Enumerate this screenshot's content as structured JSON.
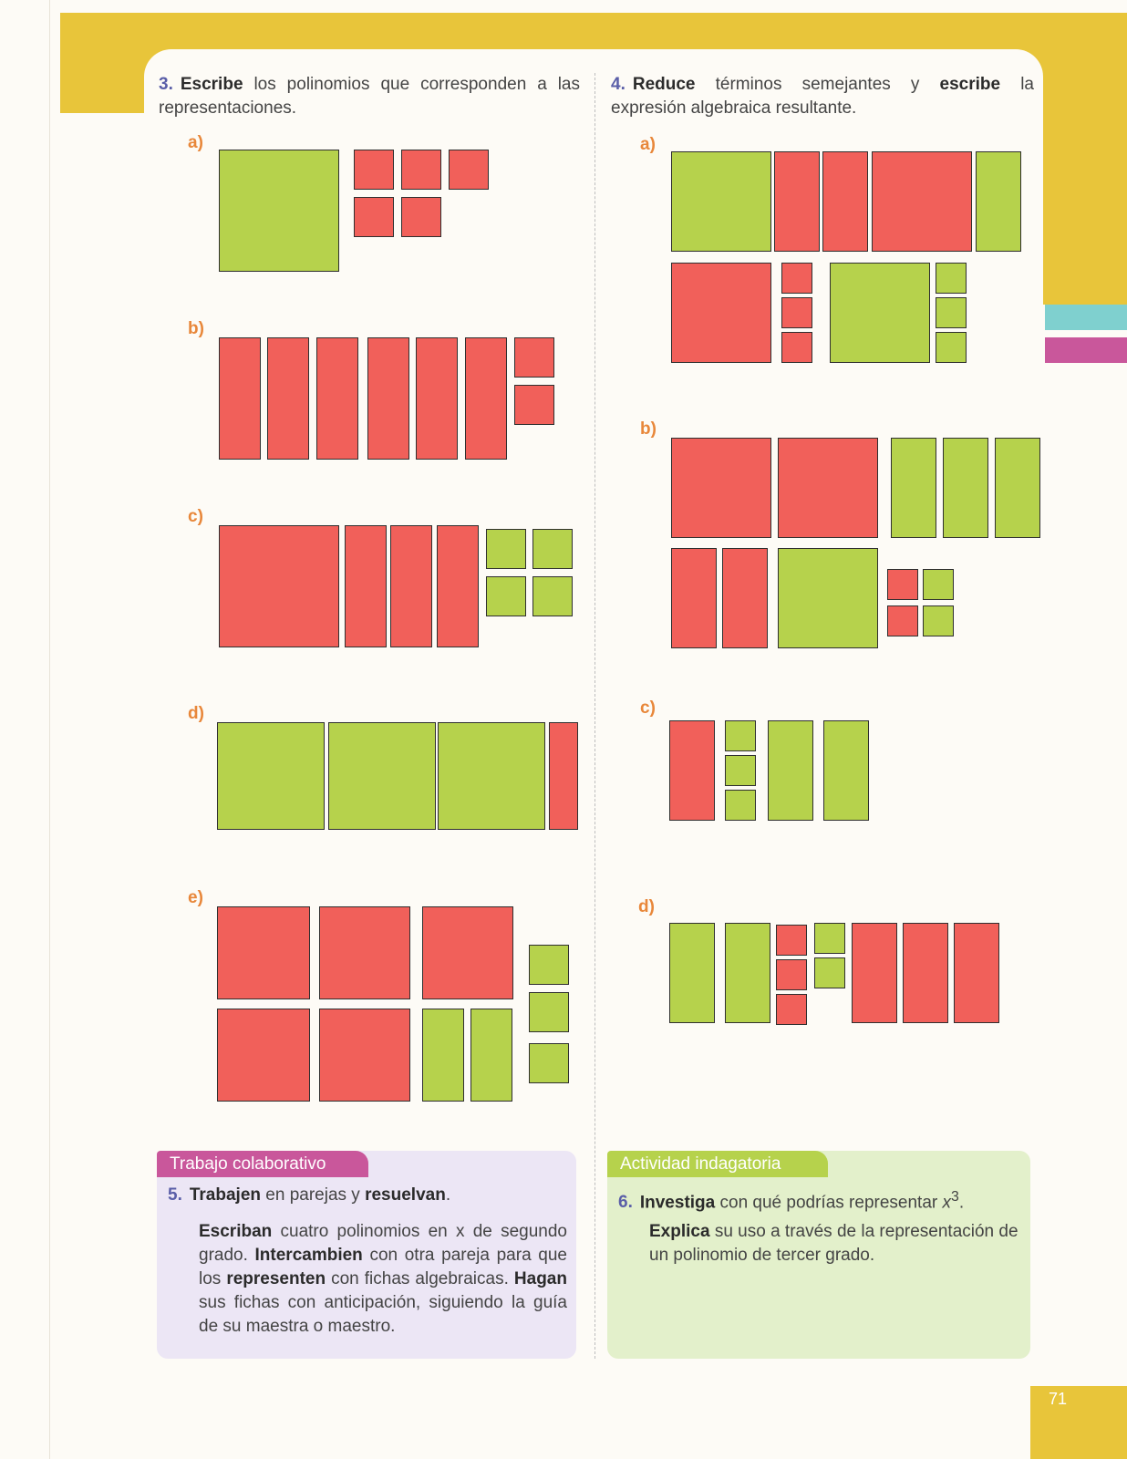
{
  "ex3": {
    "number": "3.",
    "verb": "Escribe",
    "text": " los polinomios que corresponden a las representaciones.",
    "parts": [
      "a)",
      "b)",
      "c)",
      "d)",
      "e)"
    ]
  },
  "ex4": {
    "number": "4.",
    "verb1": "Reduce",
    "text1": " términos semejantes y ",
    "verb2": "escribe",
    "text2": " la expresión algebraica resultante.",
    "parts": [
      "a)",
      "b)",
      "c)",
      "d)"
    ]
  },
  "collab": {
    "label": "Trabajo colaborativo",
    "number": "5.",
    "v1": "Trabajen",
    "t1": " en parejas y ",
    "v2": "resuelvan",
    "t2": ".",
    "v3": "Escriban",
    "t3": " cuatro polinomios en x de segundo grado. ",
    "v4": "Intercambien",
    "t4": " con otra pareja para que los ",
    "v5": "representen",
    "t5": " con fichas algebraicas. ",
    "v6": "Hagan",
    "t6": " sus fichas con anticipación, siguiendo la guía de su maestra o maestro."
  },
  "inquiry": {
    "label": "Actividad indagatoria",
    "number": "6.",
    "v1": "Investiga",
    "t1": " con qué podrías representar ",
    "var": "x",
    "exp": "3",
    "t1end": ".",
    "v2": "Explica",
    "t2": " su uso a través de la representación de un polinomio de tercer grado."
  },
  "page_number": "71",
  "colors": {
    "red_tile": "#f1605a",
    "green_tile": "#b6d24c",
    "accent_yellow": "#e8c53a",
    "accent_purple": "#c9579b"
  }
}
